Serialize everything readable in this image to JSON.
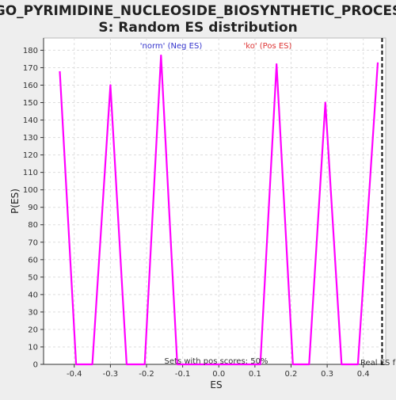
{
  "chart_data": {
    "type": "line",
    "title_line1": "GO_PYRIMIDINE_NUCLEOSIDE_BIOSYNTHETIC_PROCES",
    "title_line2": "S: Random ES distribution",
    "xlabel": "ES",
    "ylabel": "P(ES)",
    "xlim": [
      -0.485,
      0.462
    ],
    "ylim": [
      0,
      187
    ],
    "x_ticks": [
      -0.4,
      -0.3,
      -0.2,
      -0.1,
      0.0,
      0.1,
      0.2,
      0.3,
      0.4
    ],
    "x_tick_labels": [
      "-0.4",
      "-0.3",
      "-0.2",
      "-0.1",
      "0.0",
      "0.1",
      "0.2",
      "0.3",
      "0.4"
    ],
    "y_ticks": [
      0,
      10,
      20,
      30,
      40,
      50,
      60,
      70,
      80,
      90,
      100,
      110,
      120,
      130,
      140,
      150,
      160,
      170,
      180
    ],
    "grid": true,
    "legend": [
      {
        "label": "'norm' (Neg ES)",
        "color": "#3333cc"
      },
      {
        "label": "'ko' (Pos ES)",
        "color": "#dd3333"
      }
    ],
    "series": [
      {
        "color": "#ff00ff",
        "x": [
          -0.44,
          -0.395,
          -0.35,
          -0.3,
          -0.255,
          -0.205,
          -0.16,
          -0.115,
          0.115,
          0.16,
          0.205,
          0.25,
          0.295,
          0.34,
          0.385,
          0.44
        ],
        "y": [
          168,
          0,
          0,
          160,
          0,
          0,
          177,
          0,
          0,
          172,
          0,
          0,
          150,
          0,
          0,
          173
        ]
      }
    ],
    "real_es": {
      "x": 0.452,
      "label": "Real ES f"
    },
    "annotation": "Sets with pos scores: 50%"
  }
}
